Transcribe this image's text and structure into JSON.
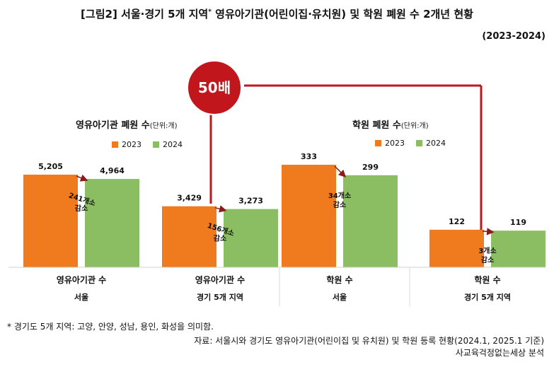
{
  "header": {
    "title_main": "[그림2] 서울·경기 5개 지역",
    "title_mark": "*",
    "title_rest": " 영유아기관(어린이집·유치원) 및 학원 폐원 수 2개년 현황",
    "period": "(2023-2024)"
  },
  "groups": {
    "childcare": {
      "title": "영유아기관 폐원 수",
      "unit": "(단위:개)"
    },
    "academy": {
      "title": "학원 폐원 수",
      "unit": "(단위:개)"
    }
  },
  "legend": {
    "y2023": "2023",
    "y2024": "2024"
  },
  "colors": {
    "y2023": "#f07a1e",
    "y2024": "#8bbd62",
    "accent": "#c0161c",
    "arrow": "#8b1a1a"
  },
  "badge": {
    "label": "50배"
  },
  "chart_data": {
    "type": "bar",
    "categories": [
      {
        "label": "영유아기관 수",
        "region": "서울"
      },
      {
        "label": "영유아기관 수",
        "region": "경기 5개 지역"
      },
      {
        "label": "학원 수",
        "region": "서울"
      },
      {
        "label": "학원 수",
        "region": "경기 5개 지역"
      }
    ],
    "series": [
      {
        "name": "2023",
        "values": [
          5205,
          3429,
          333,
          122
        ],
        "labels": [
          "5,205",
          "3,429",
          "333",
          "122"
        ]
      },
      {
        "name": "2024",
        "values": [
          4964,
          3273,
          299,
          119
        ],
        "labels": [
          "4,964",
          "3,273",
          "299",
          "119"
        ]
      }
    ],
    "decrease": [
      {
        "amount": "241개소",
        "word": "감소"
      },
      {
        "amount": "156개소",
        "word": "감소"
      },
      {
        "amount": "34개소",
        "word": "감소"
      },
      {
        "amount": "3개소",
        "word": "감소"
      }
    ],
    "scales": [
      {
        "ylim": [
          0,
          6500
        ]
      },
      {
        "ylim": [
          0,
          420
        ]
      }
    ]
  },
  "footnotes": {
    "note": "* 경기도 5개 지역: 고양, 안양, 성남, 용인, 화성을 의미함.",
    "source": "자료: 서울시와 경기도 영유아기관(어린이집 및 유치원) 및 학원 등록 현황(2024.1, 2025.1 기준)",
    "analysis": "사교육걱정없는세상 분석"
  }
}
